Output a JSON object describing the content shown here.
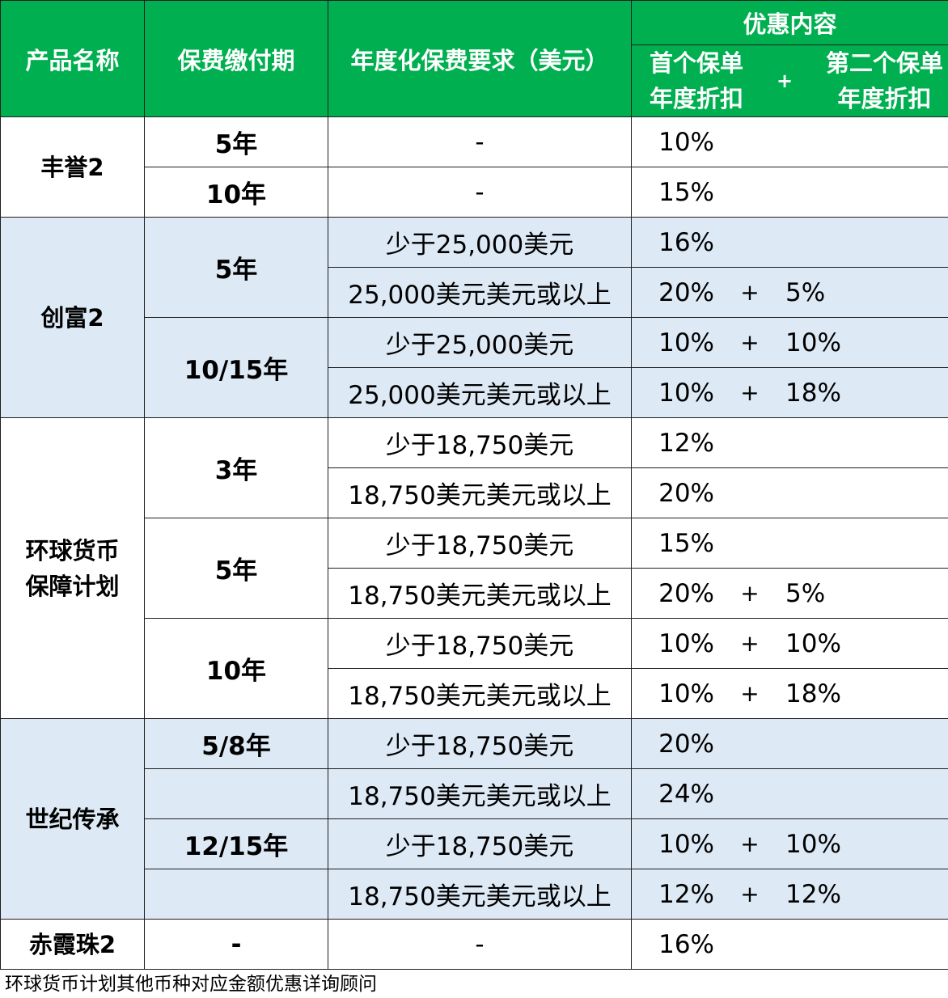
{
  "header": {
    "product_name": "产品名称",
    "payment_term": "保费缴付期",
    "premium_requirement": "年度化保费要求（美元）",
    "offer_content": "优惠内容",
    "first_policy_line1": "首个保单",
    "first_policy_line2": "年度折扣",
    "plus": "+",
    "second_policy_line1": "第二个保单",
    "second_policy_line2": "年度折扣"
  },
  "colors": {
    "header_bg": "#00b050",
    "header_text": "#ffffff",
    "band_blue": "#dde9f5",
    "band_white": "#ffffff"
  },
  "products": [
    {
      "name_line1": "丰誉2",
      "name_line2": "",
      "terms": [
        "5年",
        "10年"
      ],
      "rows": [
        {
          "requirement": "-",
          "first": "10%",
          "plus": "",
          "second": ""
        },
        {
          "requirement": "-",
          "first": "15%",
          "plus": "",
          "second": ""
        }
      ]
    },
    {
      "name_line1": "创富2",
      "name_line2": "",
      "terms": [
        "5年",
        "10/15年"
      ],
      "rows": [
        {
          "requirement": "少于25,000美元",
          "first": "16%",
          "plus": "",
          "second": ""
        },
        {
          "requirement": "25,000美元美元或以上",
          "first": "20%",
          "plus": "+",
          "second": "5%"
        },
        {
          "requirement": "少于25,000美元",
          "first": "10%",
          "plus": "+",
          "second": "10%"
        },
        {
          "requirement": "25,000美元美元或以上",
          "first": "10%",
          "plus": "+",
          "second": "18%"
        }
      ]
    },
    {
      "name_line1": "环球货币",
      "name_line2": "保障计划",
      "terms": [
        "3年",
        "5年",
        "10年"
      ],
      "rows": [
        {
          "requirement": "少于18,750美元",
          "first": "12%",
          "plus": "",
          "second": ""
        },
        {
          "requirement": "18,750美元美元或以上",
          "first": "20%",
          "plus": "",
          "second": ""
        },
        {
          "requirement": "少于18,750美元",
          "first": "15%",
          "plus": "",
          "second": ""
        },
        {
          "requirement": "18,750美元美元或以上",
          "first": "20%",
          "plus": "+",
          "second": "5%"
        },
        {
          "requirement": "少于18,750美元",
          "first": "10%",
          "plus": "+",
          "second": "10%"
        },
        {
          "requirement": "18,750美元美元或以上",
          "first": "10%",
          "plus": "+",
          "second": "18%"
        }
      ]
    },
    {
      "name_line1": "世纪传承",
      "name_line2": "",
      "terms": [
        "5/8年",
        "",
        "12/15年",
        ""
      ],
      "rows": [
        {
          "requirement": "少于18,750美元",
          "first": "20%",
          "plus": "",
          "second": ""
        },
        {
          "requirement": "18,750美元美元或以上",
          "first": "24%",
          "plus": "",
          "second": ""
        },
        {
          "requirement": "少于18,750美元",
          "first": "10%",
          "plus": "+",
          "second": "10%"
        },
        {
          "requirement": "18,750美元美元或以上",
          "first": "12%",
          "plus": "+",
          "second": "12%"
        }
      ]
    },
    {
      "name_line1": "赤霞珠2",
      "name_line2": "",
      "terms": [
        "-"
      ],
      "rows": [
        {
          "requirement": "-",
          "first": "16%",
          "plus": "",
          "second": ""
        }
      ]
    }
  ],
  "footnote": "环球货币计划其他币种对应金额优惠详询顾问"
}
